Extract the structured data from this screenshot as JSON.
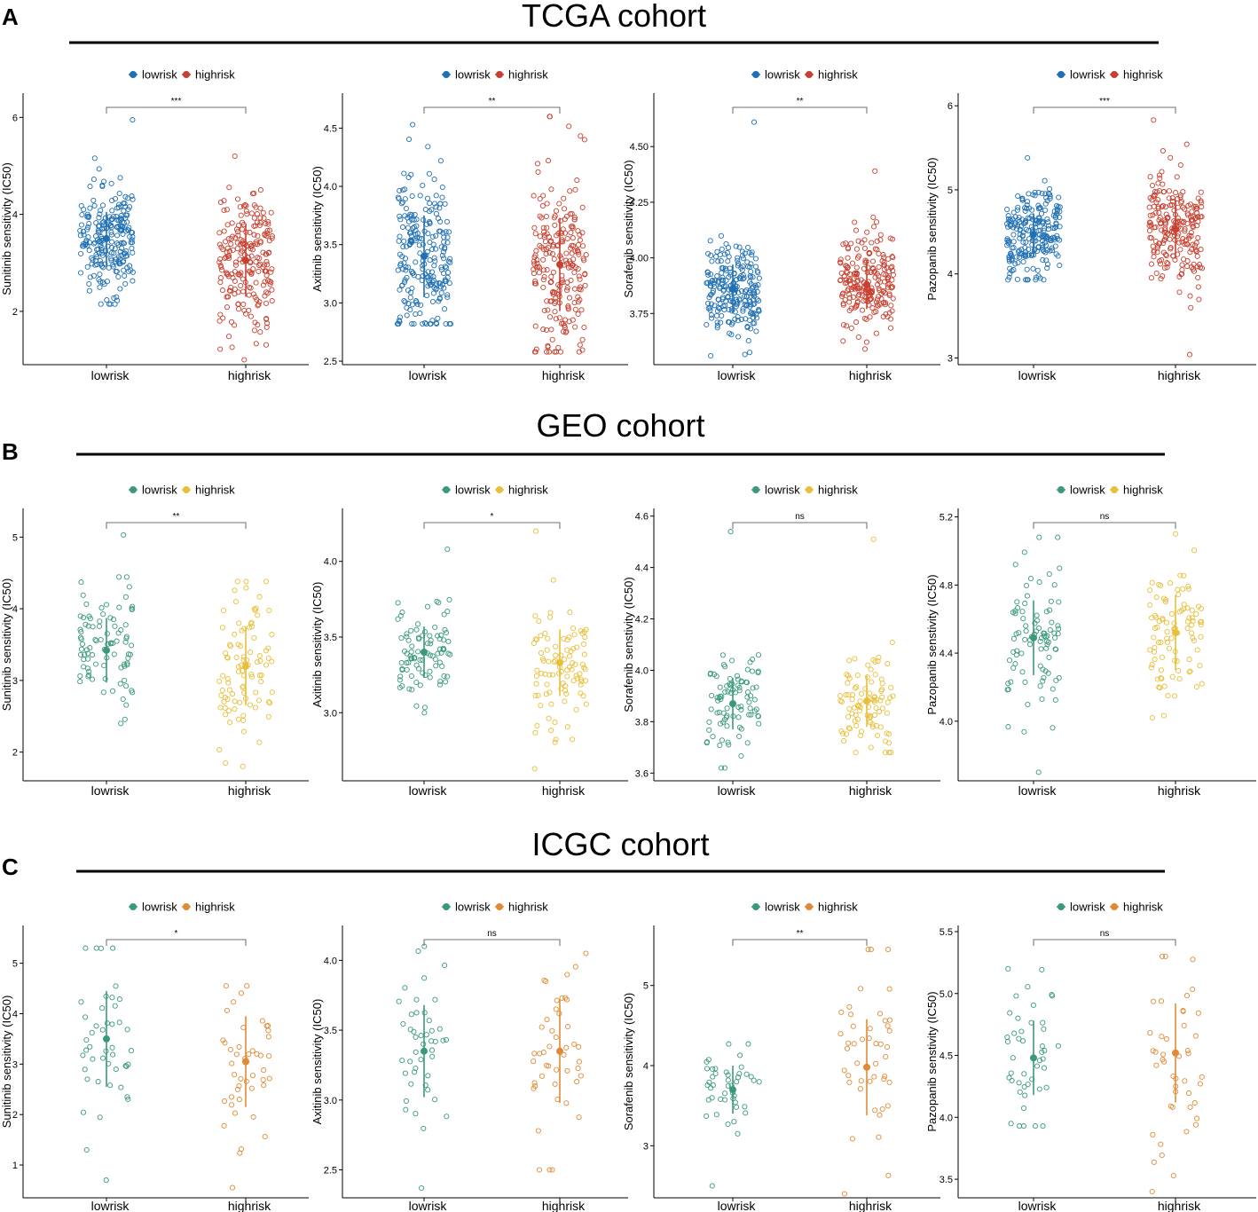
{
  "cohorts": [
    {
      "letter": "A",
      "title": "TCGA cohort",
      "panels": [
        {
          "drug": "Sunitinib",
          "ylabel": "Sunitinib sensitivity (IC50)",
          "yticks": [
            2,
            4,
            6
          ],
          "ylim": [
            0.9,
            6.5
          ],
          "sig": "***",
          "n": [
            230,
            220
          ],
          "spread": 0.35
        },
        {
          "drug": "Axitinib",
          "ylabel": "Axitinib sensitivity (IC50)",
          "yticks": [
            "2.5",
            "3.0",
            "3.5",
            "4.0",
            "4.5"
          ],
          "ylim": [
            2.47,
            4.8
          ],
          "sig": "**",
          "n": [
            230,
            220
          ],
          "spread": 0.38
        },
        {
          "drug": "Sorafenib",
          "ylabel": "Sorafenib sensitivity (IC50)",
          "yticks": [
            "3.75",
            "4.00",
            "4.25",
            "4.50"
          ],
          "ylim": [
            3.52,
            4.74
          ],
          "sig": "**",
          "n": [
            230,
            220
          ],
          "spread": 0.38
        },
        {
          "drug": "Pazopanib",
          "ylabel": "Pazopanib sensitivity (IC50)",
          "yticks": [
            3,
            4,
            5,
            6
          ],
          "ylim": [
            2.92,
            6.15
          ],
          "sig": "***",
          "n": [
            230,
            220
          ],
          "spread": 0.38
        }
      ]
    },
    {
      "letter": "B",
      "title": "GEO cohort",
      "panels": [
        {
          "drug": "Sunitinib",
          "ylabel": "Sunitinib sensitivity (IC50)",
          "yticks": [
            2,
            3,
            4,
            5
          ],
          "ylim": [
            1.6,
            5.4
          ],
          "sig": "**",
          "n": [
            90,
            95
          ],
          "spread": 0.35
        },
        {
          "drug": "Axitinib",
          "ylabel": "Axitinib sensitivity (IC50)",
          "yticks": [
            "3.0",
            "3.5",
            "4.0"
          ],
          "ylim": [
            2.55,
            4.35
          ],
          "sig": "*",
          "n": [
            90,
            95
          ],
          "spread": 0.38
        },
        {
          "drug": "Sorafenib",
          "ylabel": "Sorafenib senstivity (IC50)",
          "yticks": [
            "3.6",
            "3.8",
            "4.0",
            "4.2",
            "4.4",
            "4.6"
          ],
          "ylim": [
            3.57,
            4.63
          ],
          "sig": "ns",
          "n": [
            90,
            95
          ],
          "spread": 0.38
        },
        {
          "drug": "Pazopanib",
          "ylabel": "Pazopanib senstivity (IC50)",
          "yticks": [
            "4.0",
            "4.4",
            "4.8",
            "5.2"
          ],
          "ylim": [
            3.65,
            5.25
          ],
          "sig": "ns",
          "n": [
            90,
            95
          ],
          "spread": 0.38
        }
      ]
    },
    {
      "letter": "C",
      "title": "ICGC cohort",
      "panels": [
        {
          "drug": "Sunitinib",
          "ylabel": "Sunitinib sensitivity (IC50)",
          "yticks": [
            1,
            2,
            3,
            4,
            5
          ],
          "ylim": [
            0.35,
            5.75
          ],
          "sig": "*",
          "n": [
            45,
            45
          ],
          "spread": 0.4
        },
        {
          "drug": "Axitinib",
          "ylabel": "Axitinib sensitivity (IC50)",
          "yticks": [
            "2.5",
            "3.0",
            "3.5",
            "4.0"
          ],
          "ylim": [
            2.3,
            4.25
          ],
          "sig": "ns",
          "n": [
            45,
            45
          ],
          "spread": 0.4
        },
        {
          "drug": "Sorafenib",
          "ylabel": "Sorafenib sensitivity (IC50)",
          "yticks": [
            3,
            4,
            5
          ],
          "ylim": [
            2.35,
            5.75
          ],
          "sig": "**",
          "n": [
            45,
            45
          ],
          "spread": 0.4
        },
        {
          "drug": "Pazopanib",
          "ylabel": "Pazopanib senstivity (IC50)",
          "yticks": [
            "3.5",
            "4.0",
            "4.5",
            "5.0",
            "5.5"
          ],
          "ylim": [
            3.35,
            5.55
          ],
          "sig": "ns",
          "n": [
            45,
            45
          ],
          "spread": 0.4
        }
      ]
    }
  ],
  "chart_data": [
    {
      "type": "scatter",
      "cohort": "TCGA cohort",
      "title": "Sunitinib",
      "ylabel": "Sunitinib sensitivity (IC50)",
      "categories": [
        "lowrisk",
        "highrisk"
      ],
      "series": [
        {
          "name": "lowrisk",
          "mean": 3.5,
          "sd": 0.55,
          "min": 2.15,
          "max": 5.95,
          "color": "#1f6fb4"
        },
        {
          "name": "highrisk",
          "mean": 3.05,
          "sd": 0.75,
          "min": 1.0,
          "max": 5.2,
          "color": "#c8402f"
        }
      ],
      "ylim": [
        0.9,
        6.5
      ],
      "significance": "***"
    },
    {
      "type": "scatter",
      "cohort": "TCGA cohort",
      "title": "Axitinib",
      "ylabel": "Axitinib sensitivity (IC50)",
      "categories": [
        "lowrisk",
        "highrisk"
      ],
      "series": [
        {
          "name": "lowrisk",
          "mean": 3.4,
          "sd": 0.35,
          "min": 2.82,
          "max": 4.53,
          "color": "#1f6fb4"
        },
        {
          "name": "highrisk",
          "mean": 3.33,
          "sd": 0.4,
          "min": 2.58,
          "max": 4.6,
          "color": "#c8402f"
        }
      ],
      "ylim": [
        2.47,
        4.8
      ],
      "significance": "**"
    },
    {
      "type": "scatter",
      "cohort": "TCGA cohort",
      "title": "Sorafenib",
      "ylabel": "Sorafenib sensitivity (IC50)",
      "categories": [
        "lowrisk",
        "highrisk"
      ],
      "series": [
        {
          "name": "lowrisk",
          "mean": 3.86,
          "sd": 0.11,
          "min": 3.56,
          "max": 4.61,
          "color": "#1f6fb4"
        },
        {
          "name": "highrisk",
          "mean": 3.88,
          "sd": 0.11,
          "min": 3.59,
          "max": 4.39,
          "color": "#c8402f"
        }
      ],
      "ylim": [
        3.52,
        4.74
      ],
      "significance": "**"
    },
    {
      "type": "scatter",
      "cohort": "TCGA cohort",
      "title": "Pazopanib",
      "ylabel": "Pazopanib sensitivity (IC50)",
      "categories": [
        "lowrisk",
        "highrisk"
      ],
      "series": [
        {
          "name": "lowrisk",
          "mean": 4.47,
          "sd": 0.25,
          "min": 3.93,
          "max": 5.38,
          "color": "#1f6fb4"
        },
        {
          "name": "highrisk",
          "mean": 4.53,
          "sd": 0.35,
          "min": 3.04,
          "max": 5.83,
          "color": "#c8402f"
        }
      ],
      "ylim": [
        2.92,
        6.15
      ],
      "significance": "***"
    },
    {
      "type": "scatter",
      "cohort": "GEO cohort",
      "title": "Sunitinib",
      "ylabel": "Sunitinib sensitivity (IC50)",
      "categories": [
        "lowrisk",
        "highrisk"
      ],
      "series": [
        {
          "name": "lowrisk",
          "mean": 3.42,
          "sd": 0.45,
          "min": 2.4,
          "max": 5.03,
          "color": "#3a9a78"
        },
        {
          "name": "highrisk",
          "mean": 3.2,
          "sd": 0.55,
          "min": 1.8,
          "max": 4.38,
          "color": "#e8bf3a"
        }
      ],
      "ylim": [
        1.6,
        5.4
      ],
      "significance": "**"
    },
    {
      "type": "scatter",
      "cohort": "GEO cohort",
      "title": "Axitinib",
      "ylabel": "Axitinib sensitivity (IC50)",
      "categories": [
        "lowrisk",
        "highrisk"
      ],
      "series": [
        {
          "name": "lowrisk",
          "mean": 3.4,
          "sd": 0.17,
          "min": 3.0,
          "max": 4.08,
          "color": "#3a9a78"
        },
        {
          "name": "highrisk",
          "mean": 3.33,
          "sd": 0.22,
          "min": 2.63,
          "max": 4.2,
          "color": "#e8bf3a"
        }
      ],
      "ylim": [
        2.55,
        4.35
      ],
      "significance": "*"
    },
    {
      "type": "scatter",
      "cohort": "GEO cohort",
      "title": "Sorafenib",
      "ylabel": "Sorafenib senstivity (IC50)",
      "categories": [
        "lowrisk",
        "highrisk"
      ],
      "series": [
        {
          "name": "lowrisk",
          "mean": 3.87,
          "sd": 0.1,
          "min": 3.62,
          "max": 4.54,
          "color": "#3a9a78"
        },
        {
          "name": "highrisk",
          "mean": 3.88,
          "sd": 0.1,
          "min": 3.68,
          "max": 4.51,
          "color": "#e8bf3a"
        }
      ],
      "ylim": [
        3.57,
        4.63
      ],
      "significance": "ns"
    },
    {
      "type": "scatter",
      "cohort": "GEO cohort",
      "title": "Pazopanib",
      "ylabel": "Pazopanib senstivity (IC50)",
      "categories": [
        "lowrisk",
        "highrisk"
      ],
      "series": [
        {
          "name": "lowrisk",
          "mean": 4.49,
          "sd": 0.22,
          "min": 3.7,
          "max": 5.08,
          "color": "#3a9a78"
        },
        {
          "name": "highrisk",
          "mean": 4.52,
          "sd": 0.22,
          "min": 4.02,
          "max": 5.1,
          "color": "#e8bf3a"
        }
      ],
      "ylim": [
        3.65,
        5.25
      ],
      "significance": "ns"
    },
    {
      "type": "scatter",
      "cohort": "ICGC cohort",
      "title": "Sunitinib",
      "ylabel": "Sunitinib sensitivity (IC50)",
      "categories": [
        "lowrisk",
        "highrisk"
      ],
      "series": [
        {
          "name": "lowrisk",
          "mean": 3.5,
          "sd": 0.95,
          "min": 0.7,
          "max": 5.3,
          "color": "#3a9a78"
        },
        {
          "name": "highrisk",
          "mean": 3.05,
          "sd": 0.9,
          "min": 0.55,
          "max": 4.55,
          "color": "#e08a36"
        }
      ],
      "ylim": [
        0.35,
        5.75
      ],
      "significance": "*"
    },
    {
      "type": "scatter",
      "cohort": "ICGC cohort",
      "title": "Axitinib",
      "ylabel": "Axitinib sensitivity (IC50)",
      "categories": [
        "lowrisk",
        "highrisk"
      ],
      "series": [
        {
          "name": "lowrisk",
          "mean": 3.35,
          "sd": 0.33,
          "min": 2.37,
          "max": 4.1,
          "color": "#3a9a78"
        },
        {
          "name": "highrisk",
          "mean": 3.35,
          "sd": 0.37,
          "min": 2.5,
          "max": 4.05,
          "color": "#e08a36"
        }
      ],
      "ylim": [
        2.3,
        4.25
      ],
      "significance": "ns"
    },
    {
      "type": "scatter",
      "cohort": "ICGC cohort",
      "title": "Sorafenib",
      "ylabel": "Sorafenib sensitivity (IC50)",
      "categories": [
        "lowrisk",
        "highrisk"
      ],
      "series": [
        {
          "name": "lowrisk",
          "mean": 3.7,
          "sd": 0.3,
          "min": 2.5,
          "max": 4.27,
          "color": "#3a9a78"
        },
        {
          "name": "highrisk",
          "mean": 3.98,
          "sd": 0.6,
          "min": 2.4,
          "max": 5.45,
          "color": "#e08a36"
        }
      ],
      "ylim": [
        2.35,
        5.75
      ],
      "significance": "**"
    },
    {
      "type": "scatter",
      "cohort": "ICGC cohort",
      "title": "Pazopanib",
      "ylabel": "Pazopanib senstivity (IC50)",
      "categories": [
        "lowrisk",
        "highrisk"
      ],
      "series": [
        {
          "name": "lowrisk",
          "mean": 4.48,
          "sd": 0.3,
          "min": 3.93,
          "max": 5.2,
          "color": "#3a9a78"
        },
        {
          "name": "highrisk",
          "mean": 4.52,
          "sd": 0.4,
          "min": 3.4,
          "max": 5.3,
          "color": "#e08a36"
        }
      ],
      "ylim": [
        3.35,
        5.55
      ],
      "significance": "ns"
    }
  ]
}
